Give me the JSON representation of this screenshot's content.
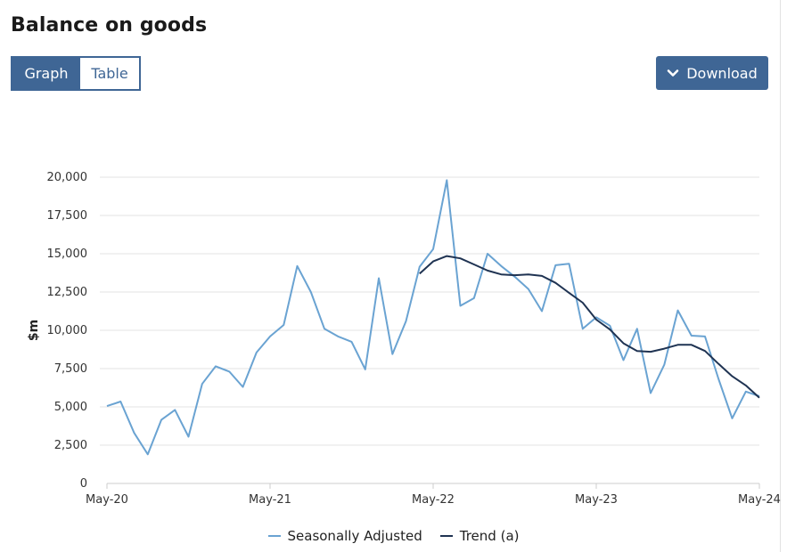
{
  "page": {
    "title": "Balance on goods",
    "tabs": [
      {
        "label": "Graph"
      },
      {
        "label": "Table"
      }
    ],
    "download_label": "Download"
  },
  "colors": {
    "accent": "#3f6695",
    "series_sa": "#6aa3d2",
    "series_trend": "#1f3352"
  },
  "icons": {
    "download": "chevron-down-icon"
  },
  "chart_data": {
    "type": "line",
    "title": "Balance on goods",
    "ylabel": "$m",
    "xlabel": "",
    "ylim": [
      0,
      20000
    ],
    "yticks": [
      0,
      2500,
      5000,
      7500,
      10000,
      12500,
      15000,
      17500,
      20000
    ],
    "ytick_labels": [
      "0",
      "2,500",
      "5,000",
      "7,500",
      "10,000",
      "12,500",
      "15,000",
      "17,500",
      "20,000"
    ],
    "xtick_labels": [
      "May-20",
      "May-21",
      "May-22",
      "May-23",
      "May-24"
    ],
    "grid": true,
    "legend_position": "bottom",
    "x": [
      "2020-05",
      "2020-06",
      "2020-07",
      "2020-08",
      "2020-09",
      "2020-10",
      "2020-11",
      "2020-12",
      "2021-01",
      "2021-02",
      "2021-03",
      "2021-04",
      "2021-05",
      "2021-06",
      "2021-07",
      "2021-08",
      "2021-09",
      "2021-10",
      "2021-11",
      "2021-12",
      "2022-01",
      "2022-02",
      "2022-03",
      "2022-04",
      "2022-05",
      "2022-06",
      "2022-07",
      "2022-08",
      "2022-09",
      "2022-10",
      "2022-11",
      "2022-12",
      "2023-01",
      "2023-02",
      "2023-03",
      "2023-04",
      "2023-05",
      "2023-06",
      "2023-07",
      "2023-08",
      "2023-09",
      "2023-10",
      "2023-11",
      "2023-12",
      "2024-01",
      "2024-02",
      "2024-03",
      "2024-04",
      "2024-05"
    ],
    "series": [
      {
        "name": "Seasonally Adjusted",
        "values": [
          5050,
          5350,
          3300,
          1900,
          4150,
          4800,
          3050,
          6500,
          7650,
          7300,
          6300,
          8550,
          9600,
          10350,
          14200,
          12500,
          10100,
          9600,
          9250,
          7450,
          13400,
          8450,
          10600,
          14150,
          15300,
          19800,
          11600,
          12100,
          15000,
          14200,
          13500,
          12700,
          11250,
          14250,
          14350,
          10100,
          10850,
          10300,
          8050,
          10100,
          5900,
          7750,
          11300,
          9650,
          9600,
          6800,
          4250,
          6000,
          5700
        ]
      },
      {
        "name": "Trend (a)",
        "values": [
          null,
          null,
          null,
          null,
          null,
          null,
          null,
          null,
          null,
          null,
          null,
          null,
          null,
          null,
          null,
          null,
          null,
          null,
          null,
          null,
          null,
          null,
          null,
          13700,
          14500,
          14850,
          14700,
          14300,
          13900,
          13650,
          13600,
          13650,
          13550,
          13100,
          12450,
          11800,
          10700,
          10050,
          9150,
          8650,
          8600,
          8800,
          9050,
          9050,
          8650,
          7800,
          7000,
          6400,
          5600
        ]
      }
    ]
  }
}
